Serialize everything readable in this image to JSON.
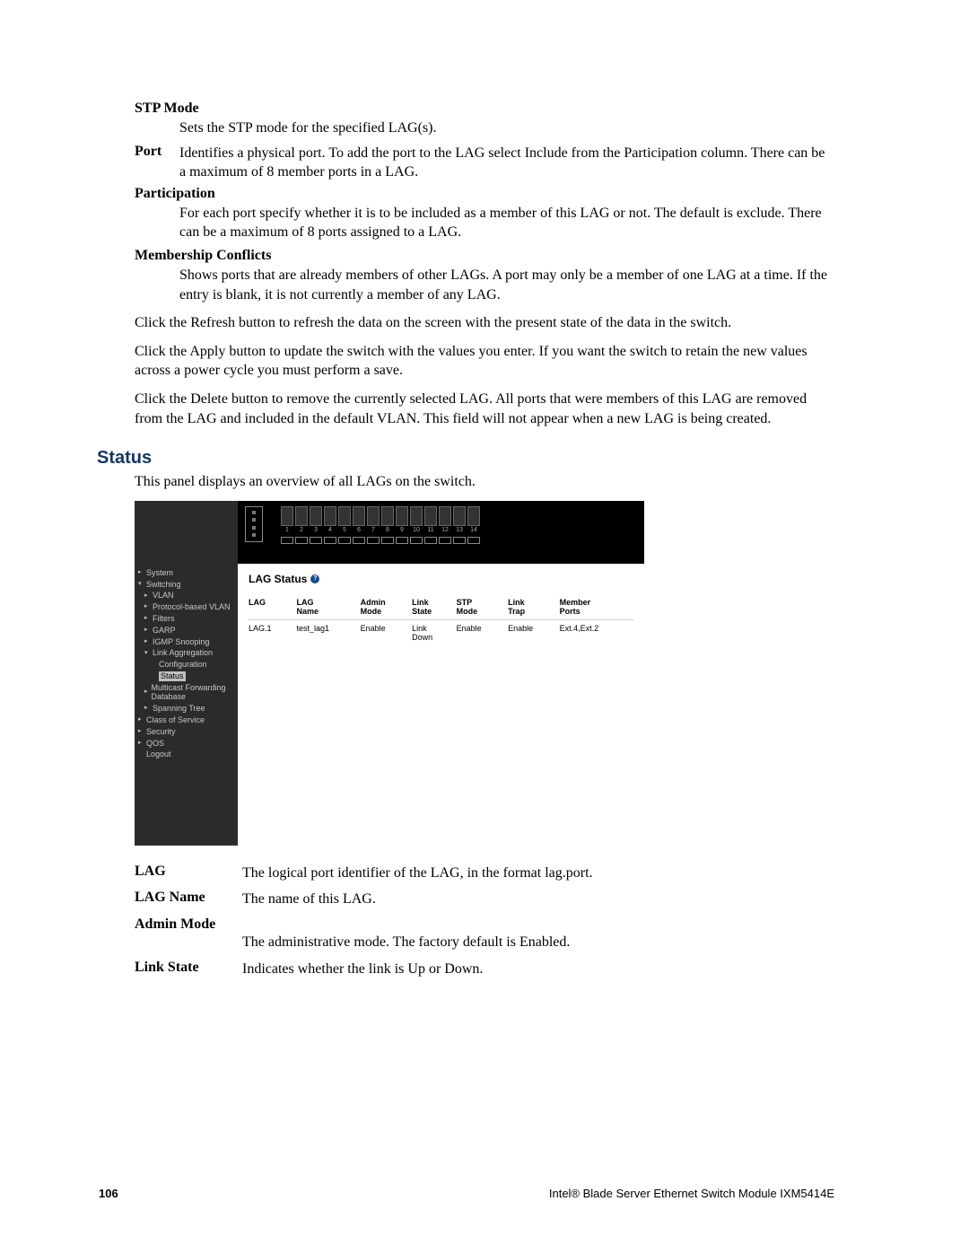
{
  "defs_top": {
    "stp_mode": {
      "term": "STP Mode",
      "body": "Sets the STP mode for the specified LAG(s)."
    },
    "port": {
      "term": "Port",
      "body": "Identifies a physical port. To add the port to the LAG select Include from the Participation column. There can be a maximum of 8 member ports in a LAG."
    },
    "participation": {
      "term": "Participation",
      "body": "For each port specify whether it is to be included as a member of this LAG or not. The default is exclude. There can be a maximum of 8 ports assigned to a LAG."
    },
    "membership": {
      "term": "Membership Conflicts",
      "body": "Shows ports that are already members of other LAGs. A port may only be a member of one LAG at a time. If the entry is blank, it is not currently a member of any LAG."
    }
  },
  "paras": {
    "refresh": "Click the Refresh button to refresh the data on the screen with the present state of the data in the switch.",
    "apply": "Click the Apply button to update the switch with the values you enter. If you want the switch to retain the new values across a power cycle you must perform a save.",
    "delete": "Click the Delete button to remove the currently selected LAG. All ports that were members of this LAG are removed from the LAG and included in the default VLAN. This field will not appear when a new LAG is being created."
  },
  "section": {
    "title": "Status",
    "intro": "This panel displays an overview of all LAGs on the switch."
  },
  "screenshot": {
    "nav": [
      {
        "label": "System",
        "indent": 1,
        "arrow": "▸"
      },
      {
        "label": "Switching",
        "indent": 1,
        "arrow": "▾"
      },
      {
        "label": "VLAN",
        "indent": 2,
        "arrow": "▸"
      },
      {
        "label": "Protocol-based VLAN",
        "indent": 2,
        "arrow": "▸"
      },
      {
        "label": "Filters",
        "indent": 2,
        "arrow": "▸"
      },
      {
        "label": "GARP",
        "indent": 2,
        "arrow": "▸"
      },
      {
        "label": "IGMP Snooping",
        "indent": 2,
        "arrow": "▸"
      },
      {
        "label": "Link Aggregation",
        "indent": 2,
        "arrow": "▾"
      },
      {
        "label": "Configuration",
        "indent": 3,
        "arrow": ""
      },
      {
        "label": "Status",
        "indent": 3,
        "arrow": "",
        "selected": true
      },
      {
        "label": "Multicast Forwarding Database",
        "indent": 2,
        "arrow": "▸"
      },
      {
        "label": "Spanning Tree",
        "indent": 2,
        "arrow": "▸"
      },
      {
        "label": "Class of Service",
        "indent": 1,
        "arrow": "▸"
      },
      {
        "label": "Security",
        "indent": 1,
        "arrow": "▸"
      },
      {
        "label": "QOS",
        "indent": 1,
        "arrow": "▸"
      },
      {
        "label": "Logout",
        "indent": 1,
        "arrow": ""
      }
    ],
    "port_numbers": [
      "1",
      "2",
      "3",
      "4",
      "5",
      "6",
      "7",
      "8",
      "9",
      "10",
      "11",
      "12",
      "13",
      "14"
    ],
    "panel_title": "LAG Status",
    "help": "?",
    "table": {
      "columns": [
        "LAG",
        "LAG Name",
        "Admin Mode",
        "Link State",
        "STP Mode",
        "Link Trap",
        "Member Ports"
      ],
      "row": [
        "LAG.1",
        "test_lag1",
        "Enable",
        "Link Down",
        "Enable",
        "Enable",
        "Ext.4,Ext.2"
      ]
    }
  },
  "defs_bottom": {
    "lag": {
      "term": "LAG",
      "desc": "The logical port identifier of the LAG, in the format lag.port."
    },
    "lag_name": {
      "term": "LAG Name",
      "desc": "The name of this LAG."
    },
    "admin_mode": {
      "term": "Admin Mode",
      "desc": "The administrative mode. The factory default is Enabled."
    },
    "link_state": {
      "term": "Link State",
      "desc": "Indicates whether the link is Up or Down."
    }
  },
  "footer": {
    "page": "106",
    "product": "Intel® Blade Server Ethernet Switch Module IXM5414E"
  }
}
